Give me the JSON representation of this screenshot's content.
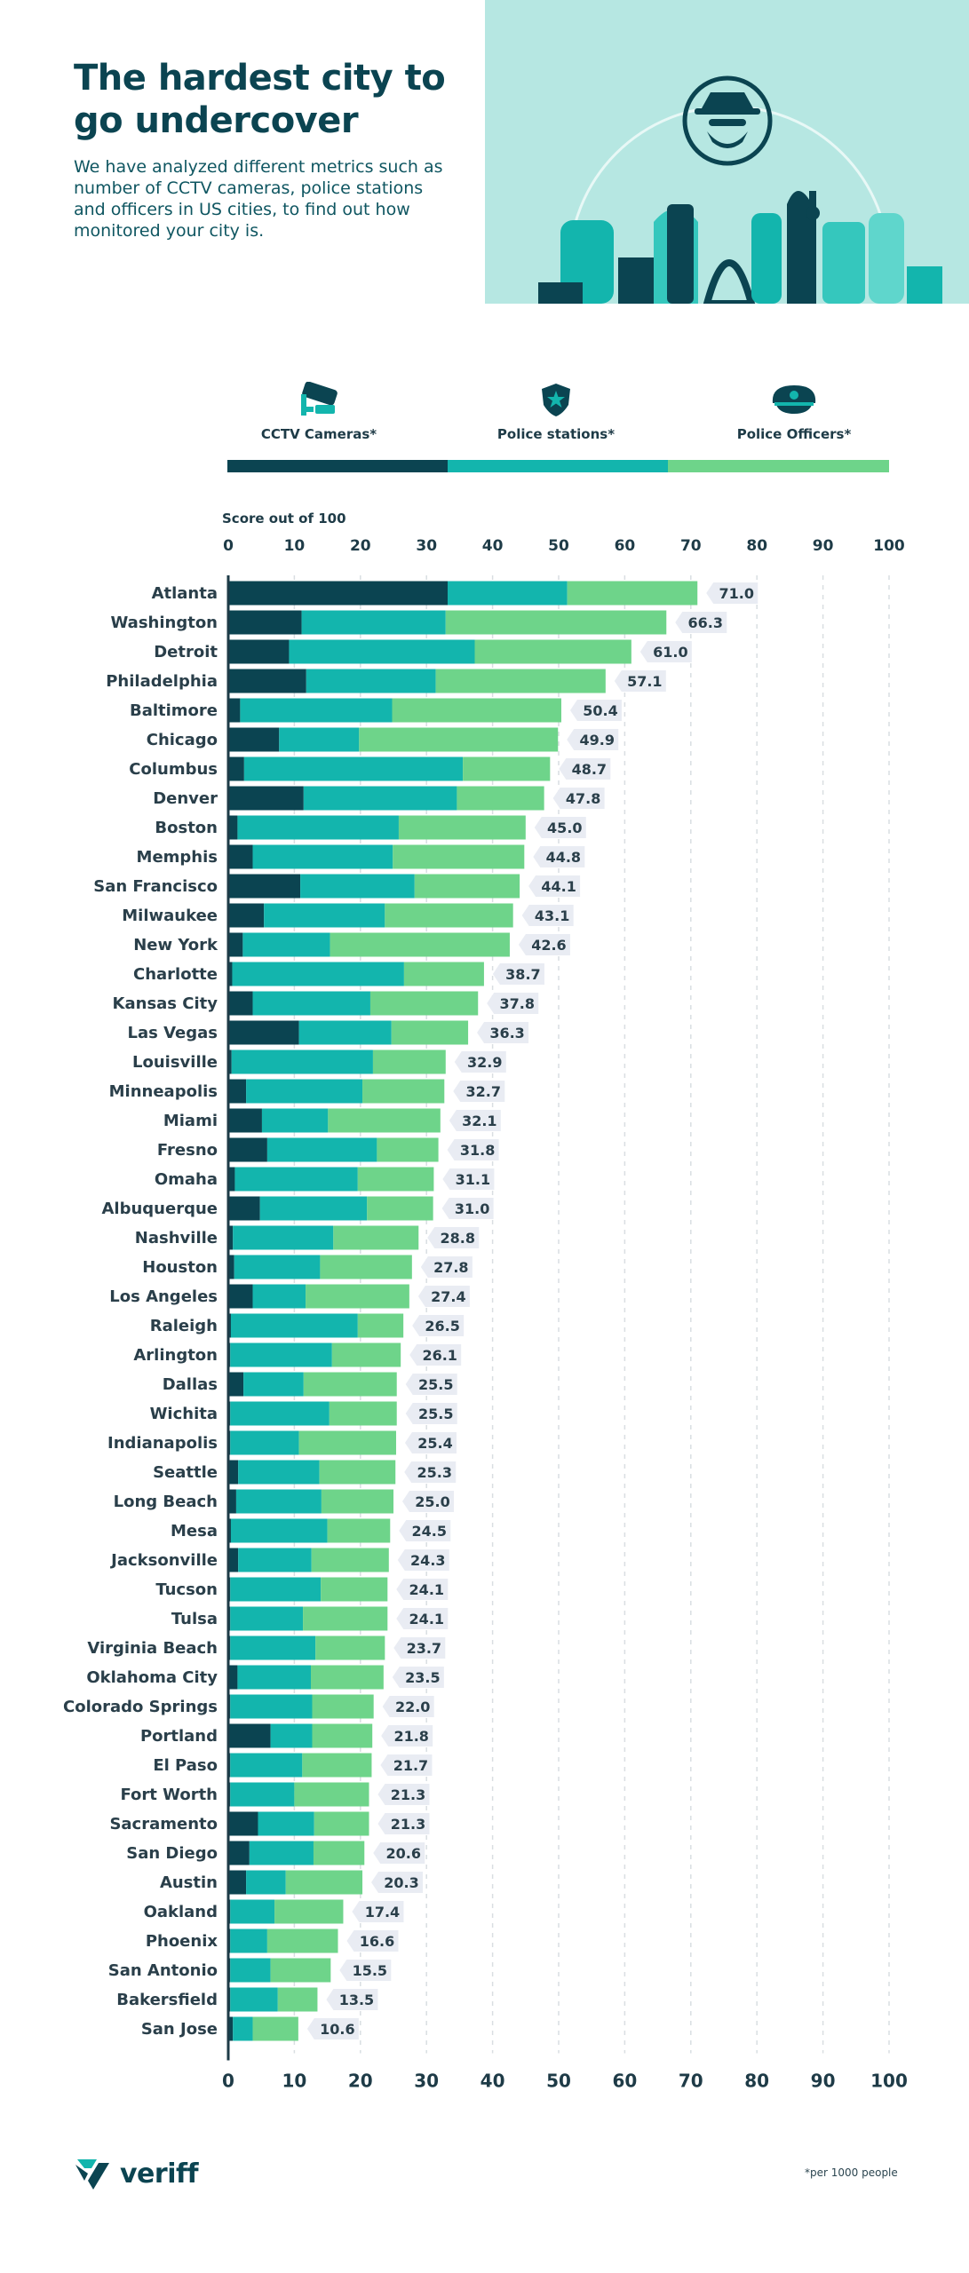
{
  "header": {
    "title": "The hardest city to go undercover",
    "subtitle": "We have analyzed different metrics such as number of CCTV cameras, police stations and officers in US cities, to find out how monitored your city is."
  },
  "legend": {
    "items": [
      {
        "label": "CCTV Cameras*",
        "color": "#0b4451",
        "icon": "cctv-camera-icon"
      },
      {
        "label": "Police stations*",
        "color": "#13b5ad",
        "icon": "police-badge-icon"
      },
      {
        "label": "Police Officers*",
        "color": "#6ed48a",
        "icon": "police-cap-icon"
      }
    ]
  },
  "footer": {
    "brand": "veriff",
    "note": "*per 1000 people"
  },
  "chart_data": {
    "type": "bar",
    "orientation": "horizontal",
    "stacked": true,
    "title": "Score out of 100",
    "xlim": [
      0,
      100
    ],
    "xticks": [
      0,
      10,
      20,
      30,
      40,
      50,
      60,
      70,
      80,
      90,
      100
    ],
    "grid": true,
    "colors": {
      "cctv": "#0b4451",
      "stations": "#13b5ad",
      "officers": "#6ed48a"
    },
    "categories": [
      "Atlanta",
      "Washington",
      "Detroit",
      "Philadelphia",
      "Baltimore",
      "Chicago",
      "Columbus",
      "Denver",
      "Boston",
      "Memphis",
      "San Francisco",
      "Milwaukee",
      "New York",
      "Charlotte",
      "Kansas City",
      "Las Vegas",
      "Louisville",
      "Minneapolis",
      "Miami",
      "Fresno",
      "Omaha",
      "Albuquerque",
      "Nashville",
      "Houston",
      "Los Angeles",
      "Raleigh",
      "Arlington",
      "Dallas",
      "Wichita",
      "Indianapolis",
      "Seattle",
      "Long Beach",
      "Mesa",
      "Jacksonville",
      "Tucson",
      "Tulsa",
      "Virginia Beach",
      "Oklahoma City",
      "Colorado Springs",
      "Portland",
      "El Paso",
      "Fort Worth",
      "Sacramento",
      "San Diego",
      "Austin",
      "Oakland",
      "Phoenix",
      "San Antonio",
      "Bakersfield",
      "San Jose"
    ],
    "series": [
      {
        "name": "CCTV Cameras*",
        "values": [
          33.2,
          11.1,
          9.2,
          11.8,
          1.8,
          7.7,
          2.4,
          11.4,
          1.4,
          3.7,
          10.9,
          5.4,
          2.2,
          0.6,
          3.7,
          10.7,
          0.5,
          2.7,
          5.1,
          5.9,
          1.0,
          4.8,
          0.7,
          0.9,
          3.7,
          0.4,
          0.3,
          2.3,
          0.3,
          0.3,
          1.5,
          1.2,
          0.4,
          1.5,
          0.3,
          0.3,
          0.3,
          1.4,
          0.3,
          6.4,
          0.3,
          0.3,
          4.5,
          3.2,
          2.7,
          0.3,
          0.3,
          0.3,
          0.3,
          0.7
        ]
      },
      {
        "name": "Police stations*",
        "values": [
          18.1,
          21.8,
          28.1,
          19.6,
          23.0,
          12.1,
          33.1,
          23.2,
          24.4,
          21.2,
          17.3,
          18.3,
          13.2,
          26.0,
          17.8,
          14.0,
          21.4,
          17.6,
          10.0,
          16.6,
          18.6,
          16.2,
          15.2,
          13.0,
          8.0,
          19.2,
          15.4,
          9.1,
          15.0,
          10.4,
          12.3,
          12.9,
          14.6,
          11.1,
          13.7,
          11.0,
          12.9,
          11.1,
          12.4,
          6.3,
          10.9,
          9.7,
          8.5,
          9.7,
          6.0,
          6.7,
          5.6,
          6.1,
          7.2,
          3.0
        ]
      },
      {
        "name": "Police Officers*",
        "values": [
          19.7,
          33.4,
          23.7,
          25.7,
          25.6,
          30.1,
          13.2,
          13.2,
          19.2,
          19.9,
          15.9,
          19.4,
          27.2,
          12.1,
          16.3,
          11.6,
          11.0,
          12.4,
          17.0,
          9.3,
          11.5,
          10.0,
          12.9,
          13.9,
          15.7,
          6.9,
          10.4,
          14.1,
          10.2,
          14.7,
          11.5,
          10.9,
          9.5,
          11.7,
          10.1,
          12.8,
          10.5,
          11.0,
          9.3,
          9.1,
          10.5,
          11.3,
          8.3,
          7.7,
          11.6,
          10.4,
          10.7,
          9.1,
          6.0,
          6.9
        ]
      }
    ],
    "totals": [
      71.0,
      66.3,
      61.0,
      57.1,
      50.4,
      49.9,
      48.7,
      47.8,
      45.0,
      44.8,
      44.1,
      43.1,
      42.6,
      38.7,
      37.8,
      36.3,
      32.9,
      32.7,
      32.1,
      31.8,
      31.1,
      31.0,
      28.8,
      27.8,
      27.4,
      26.5,
      26.1,
      25.5,
      25.5,
      25.4,
      25.3,
      25.0,
      24.5,
      24.3,
      24.1,
      24.1,
      23.7,
      23.5,
      22.0,
      21.8,
      21.7,
      21.3,
      21.3,
      20.6,
      20.3,
      17.4,
      16.6,
      15.5,
      13.5,
      10.6
    ],
    "total_labels": [
      "71.0",
      "66.3",
      "61.0",
      "57.1",
      "50.4",
      "49.9",
      "48.7",
      "47.8",
      "45.0",
      "44.8",
      "44.1",
      "43.1",
      "42.6",
      "38.7",
      "37.8",
      "36.3",
      "32.9",
      "32.7",
      "32.1",
      "31.8",
      "31.1",
      "31.0",
      "28.8",
      "27.8",
      "27.4",
      "26.5",
      "26.1",
      "25.5",
      "25.5",
      "25.4",
      "25.3",
      "25.0",
      "24.5",
      "24.3",
      "24.1",
      "24.1",
      "23.7",
      "23.5",
      "22.0",
      "21.8",
      "21.7",
      "21.3",
      "21.3",
      "20.6",
      "20.3",
      "17.4",
      "16.6",
      "15.5",
      "13.5",
      "10.6"
    ]
  }
}
